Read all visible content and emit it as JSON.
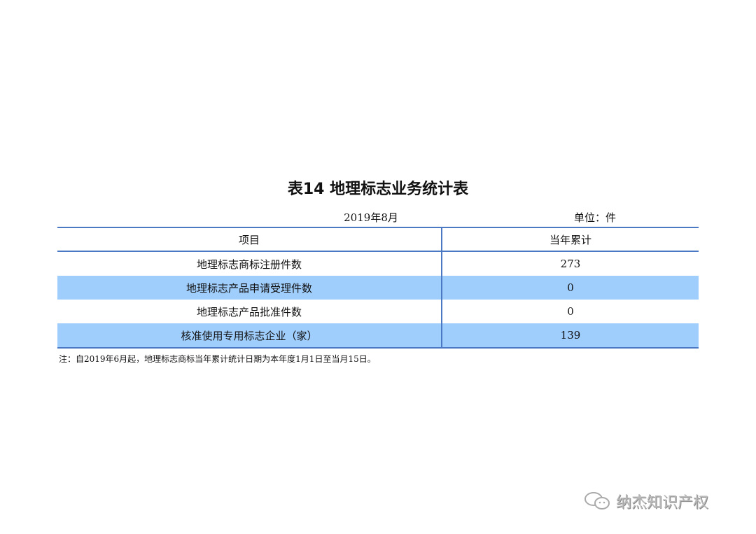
{
  "title": "表14 地理标志业务统计表",
  "date": "2019年8月",
  "unit": "单位：件",
  "table": {
    "headers": [
      "项目",
      "当年累计"
    ],
    "rows": [
      {
        "item": "地理标志商标注册件数",
        "value": "273"
      },
      {
        "item": "地理标志产品申请受理件数",
        "value": "0"
      },
      {
        "item": "地理标志产品批准件数",
        "value": "0"
      },
      {
        "item": "核准使用专用标志企业（家）",
        "value": "139"
      }
    ]
  },
  "note": "注：自2019年6月起，地理标志商标当年累计统计日期为本年度1月1日至当月15日。",
  "watermark": {
    "icon": "wechat-icon",
    "text": "纳杰知识产权"
  },
  "colors": {
    "border": "#4a78c2",
    "row_highlight": "#9fcdfc"
  }
}
